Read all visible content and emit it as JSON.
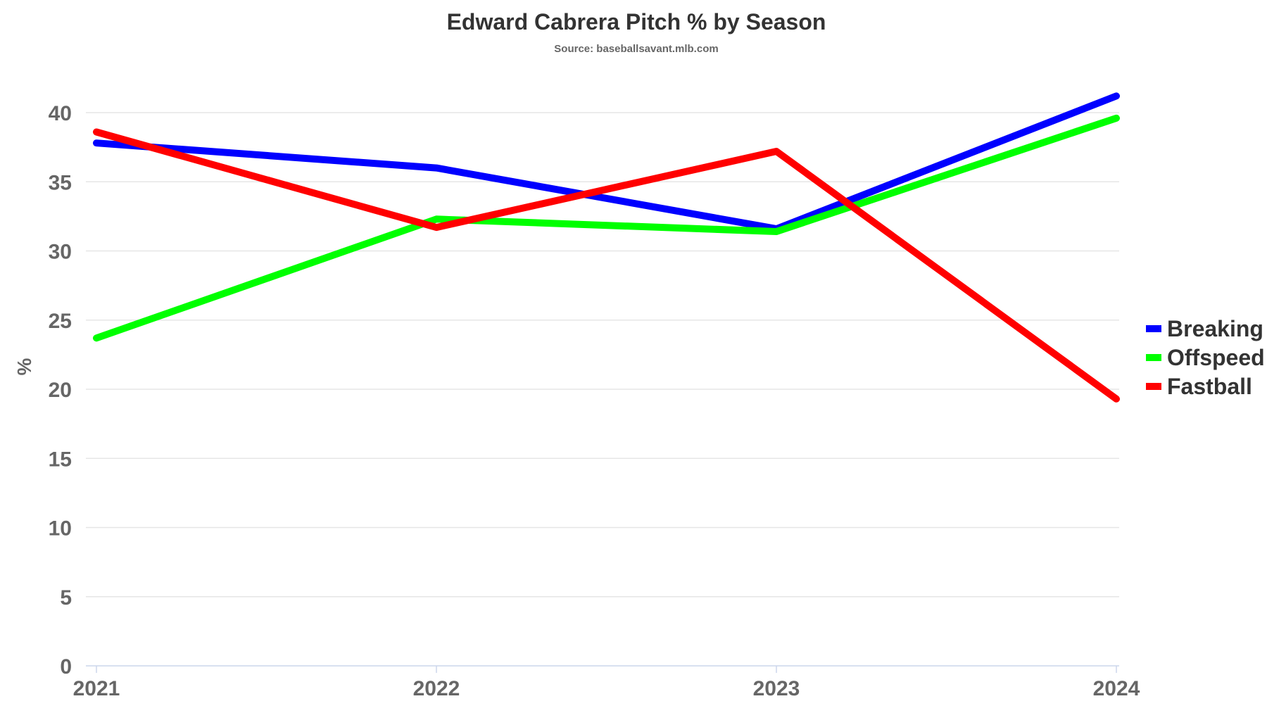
{
  "chart_data": {
    "type": "line",
    "title": "Edward Cabrera Pitch % by Season",
    "subtitle": "Source: baseballsavant.mlb.com",
    "xlabel": "",
    "ylabel": "%",
    "categories": [
      "2021",
      "2022",
      "2023",
      "2024"
    ],
    "yticks": [
      0,
      5,
      10,
      15,
      20,
      25,
      30,
      35,
      40
    ],
    "ylim": [
      0,
      42
    ],
    "grid": true,
    "legend_position": "right",
    "series": [
      {
        "name": "Breaking",
        "color": "#0000ff",
        "values": [
          37.8,
          36.0,
          31.6,
          41.2
        ]
      },
      {
        "name": "Offspeed",
        "color": "#00ff00",
        "values": [
          23.7,
          32.3,
          31.4,
          39.6
        ]
      },
      {
        "name": "Fastball",
        "color": "#ff0000",
        "values": [
          38.6,
          31.7,
          37.2,
          19.3
        ]
      }
    ]
  }
}
